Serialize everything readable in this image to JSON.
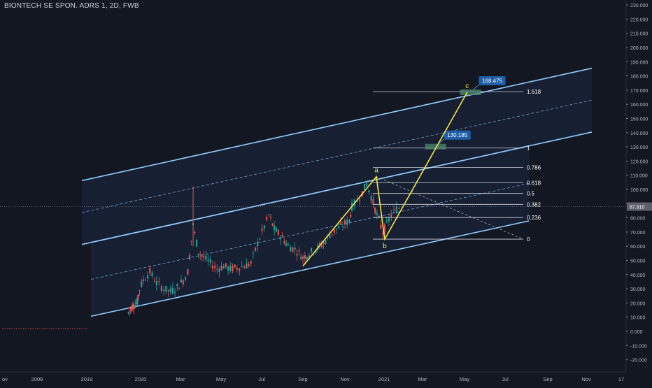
{
  "header": {
    "symbol_title": "BIONTECH SE SPON. ADRS 1, 2D, FWB"
  },
  "colors": {
    "background": "#131722",
    "channel_line": "#90caf9",
    "channel_fill": "#1c2a4a",
    "wave_line": "#f5e642",
    "candle_up": "#26a69a",
    "candle_down": "#ef5350",
    "fib_line": "#d1d4dc",
    "label_blue": "#1e5fa8",
    "target_zone": "#4e8a72",
    "price_badge": "#5d606b"
  },
  "chart_data": {
    "type": "candlestick",
    "title": "BIONTECH SE SPON. ADRS 1, 2D, FWB",
    "current_price": "87.910",
    "yaxis": {
      "ticks": [
        "-20.000",
        "-10.000",
        "0.000",
        "10.000",
        "20.000",
        "30.000",
        "40.000",
        "50.000",
        "60.000",
        "70.000",
        "80.000",
        "90.000",
        "100.000",
        "110.000",
        "120.000",
        "130.000",
        "140.000",
        "150.000",
        "160.000",
        "170.000",
        "180.000",
        "190.000",
        "200.000",
        "210.000",
        "220.000",
        "230.000"
      ]
    },
    "xaxis": {
      "ticks": [
        {
          "label": "ov",
          "date": "2008-11-01"
        },
        {
          "label": "2009",
          "date": "2009-01-01"
        },
        {
          "label": "2019",
          "date": "2019-01-01"
        },
        {
          "label": "2020",
          "date": "2020-01-01"
        },
        {
          "label": "Mar",
          "date": "2020-03-01"
        },
        {
          "label": "May",
          "date": "2020-05-01"
        },
        {
          "label": "Jul",
          "date": "2020-07-01"
        },
        {
          "label": "Sep",
          "date": "2020-09-01"
        },
        {
          "label": "Nov",
          "date": "2020-11-01"
        },
        {
          "label": "2021",
          "date": "2021-01-01"
        },
        {
          "label": "Mar",
          "date": "2021-03-01"
        },
        {
          "label": "May",
          "date": "2021-05-01"
        },
        {
          "label": "Jul",
          "date": "2021-07-01"
        },
        {
          "label": "Sep",
          "date": "2021-09-01"
        },
        {
          "label": "Nov",
          "date": "2021-11-01"
        },
        {
          "label": "17",
          "date": "2022-01-01"
        }
      ]
    },
    "price_path": [
      [
        "2019-10-10",
        13
      ],
      [
        "2019-10-25",
        16
      ],
      [
        "2019-11-10",
        18
      ],
      [
        "2019-11-25",
        19
      ],
      [
        "2019-12-10",
        21
      ],
      [
        "2019-12-25",
        30
      ],
      [
        "2020-01-05",
        36
      ],
      [
        "2020-01-15",
        42
      ],
      [
        "2020-01-25",
        34
      ],
      [
        "2020-02-05",
        30
      ],
      [
        "2020-02-15",
        28
      ],
      [
        "2020-02-25",
        31
      ],
      [
        "2020-03-05",
        36
      ],
      [
        "2020-03-12",
        42
      ],
      [
        "2020-03-20",
        75
      ],
      [
        "2020-03-28",
        56
      ],
      [
        "2020-04-05",
        52
      ],
      [
        "2020-04-15",
        48
      ],
      [
        "2020-04-25",
        44
      ],
      [
        "2020-05-05",
        46
      ],
      [
        "2020-05-15",
        44
      ],
      [
        "2020-05-25",
        45
      ],
      [
        "2020-06-05",
        46
      ],
      [
        "2020-06-15",
        48
      ],
      [
        "2020-06-25",
        62
      ],
      [
        "2020-07-05",
        74
      ],
      [
        "2020-07-12",
        82
      ],
      [
        "2020-07-20",
        72
      ],
      [
        "2020-08-01",
        66
      ],
      [
        "2020-08-10",
        60
      ],
      [
        "2020-08-20",
        58
      ],
      [
        "2020-09-01",
        52
      ],
      [
        "2020-09-10",
        55
      ],
      [
        "2020-09-20",
        58
      ],
      [
        "2020-10-01",
        62
      ],
      [
        "2020-10-10",
        68
      ],
      [
        "2020-10-20",
        72
      ],
      [
        "2020-11-01",
        76
      ],
      [
        "2020-11-08",
        78
      ],
      [
        "2020-11-12",
        88
      ],
      [
        "2020-11-20",
        92
      ],
      [
        "2020-11-28",
        98
      ],
      [
        "2020-12-05",
        104
      ],
      [
        "2020-12-12",
        95
      ],
      [
        "2020-12-18",
        86
      ],
      [
        "2020-12-24",
        78
      ],
      [
        "2020-12-30",
        70
      ],
      [
        "2021-01-05",
        75
      ],
      [
        "2021-01-12",
        82
      ],
      [
        "2021-01-20",
        86
      ],
      [
        "2021-01-28",
        88
      ]
    ],
    "history_flat": {
      "from": "2008-11-01",
      "to": "2019-01-01",
      "value": 2
    },
    "regression_channels": [
      {
        "name": "outer",
        "start": {
          "date": "2019-01-01",
          "upper": 107,
          "lower": 62
        },
        "end": {
          "date": "2022-01-01",
          "upper": 190,
          "lower": 145
        }
      },
      {
        "name": "inner",
        "start": {
          "date": "2019-01-01",
          "upper": 62,
          "lower": 10
        },
        "end": {
          "date": "2022-01-01",
          "upper": 145,
          "lower": 92
        }
      }
    ],
    "waves": [
      {
        "label": "a",
        "date": "2020-12-20",
        "value": 109
      },
      {
        "label": "b",
        "date": "2021-01-02",
        "value": 65
      },
      {
        "label": "c",
        "date": "2021-05-05",
        "value": 168.475
      },
      {
        "label": "",
        "date": "2020-09-01",
        "value": 46
      }
    ],
    "fib_levels": [
      {
        "label": "0",
        "value": 65
      },
      {
        "label": "0.236",
        "value": 80.2
      },
      {
        "label": "0.382",
        "value": 89.5
      },
      {
        "label": "0.5",
        "value": 97.2
      },
      {
        "label": "0.618",
        "value": 104.8
      },
      {
        "label": "0.786",
        "value": 115.5
      },
      {
        "label": "1",
        "value": 129.2
      },
      {
        "label": "1.618",
        "value": 168.9
      }
    ],
    "targets": [
      {
        "label": "130.185",
        "value": 130.185
      },
      {
        "label": "168.475",
        "value": 168.475
      }
    ]
  }
}
